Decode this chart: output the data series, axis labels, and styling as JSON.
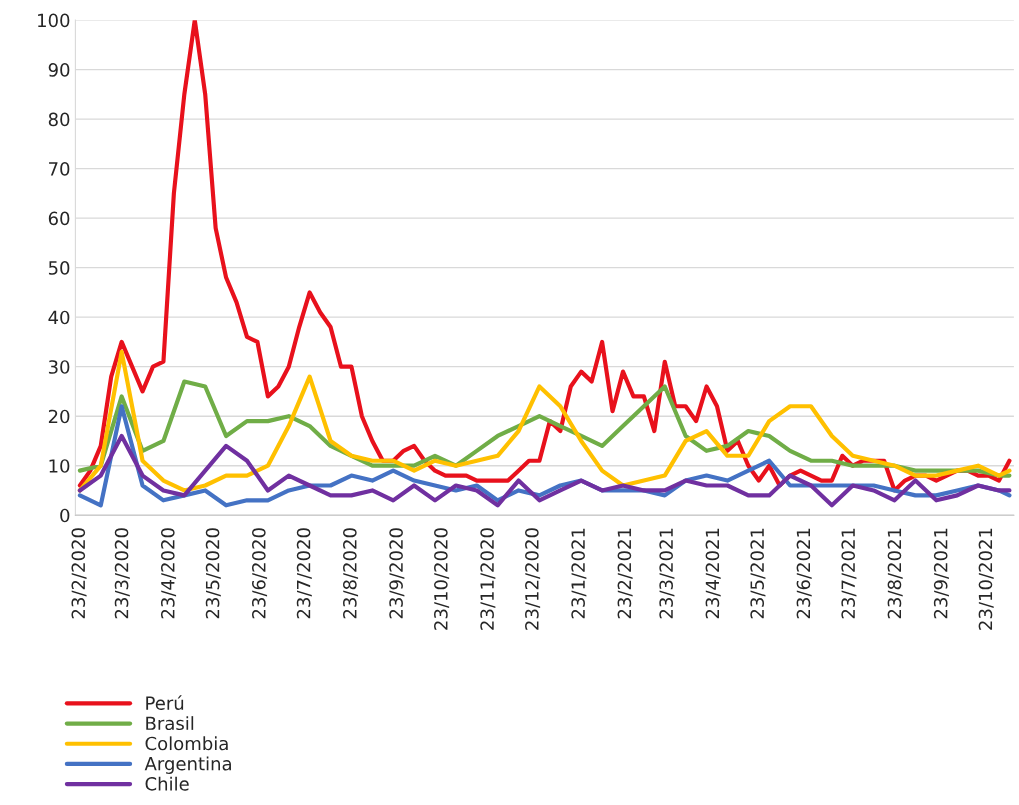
{
  "chart_data": {
    "type": "line",
    "xlim": [
      "2020-02-20",
      "2021-11-10"
    ],
    "xticks": [
      {
        "value": "2020-02-23",
        "label": "23/2/2020"
      },
      {
        "value": "2020-03-23",
        "label": "23/3/2020"
      },
      {
        "value": "2020-04-23",
        "label": "23/4/2020"
      },
      {
        "value": "2020-05-23",
        "label": "23/5/2020"
      },
      {
        "value": "2020-06-23",
        "label": "23/6/2020"
      },
      {
        "value": "2020-07-23",
        "label": "23/7/2020"
      },
      {
        "value": "2020-08-23",
        "label": "23/8/2020"
      },
      {
        "value": "2020-09-23",
        "label": "23/9/2020"
      },
      {
        "value": "2020-10-23",
        "label": "23/10/2020"
      },
      {
        "value": "2020-11-23",
        "label": "23/11/2020"
      },
      {
        "value": "2020-12-23",
        "label": "23/12/2020"
      },
      {
        "value": "2021-01-23",
        "label": "23/1/2021"
      },
      {
        "value": "2021-02-23",
        "label": "23/2/2021"
      },
      {
        "value": "2021-03-23",
        "label": "23/3/2021"
      },
      {
        "value": "2021-04-23",
        "label": "23/4/2021"
      },
      {
        "value": "2021-05-23",
        "label": "23/5/2021"
      },
      {
        "value": "2021-06-23",
        "label": "23/6/2021"
      },
      {
        "value": "2021-07-23",
        "label": "23/7/2021"
      },
      {
        "value": "2021-08-23",
        "label": "23/8/2021"
      },
      {
        "value": "2021-09-23",
        "label": "23/9/2021"
      },
      {
        "value": "2021-10-23",
        "label": "23/10/2021"
      }
    ],
    "ylim": [
      0,
      100
    ],
    "yticks": [
      0,
      10,
      20,
      30,
      40,
      50,
      60,
      70,
      80,
      90,
      100
    ],
    "grid": "y",
    "legend": "bottom",
    "marker": "none",
    "line_style": "solid",
    "series": [
      {
        "name": "Perú",
        "color": "#e8111c",
        "x": [
          "2020-02-23",
          "2020-03-01",
          "2020-03-08",
          "2020-03-15",
          "2020-03-22",
          "2020-03-29",
          "2020-04-05",
          "2020-04-12",
          "2020-04-19",
          "2020-04-26",
          "2020-05-03",
          "2020-05-10",
          "2020-05-17",
          "2020-05-24",
          "2020-05-31",
          "2020-06-07",
          "2020-06-14",
          "2020-06-21",
          "2020-06-28",
          "2020-07-05",
          "2020-07-12",
          "2020-07-19",
          "2020-07-26",
          "2020-08-02",
          "2020-08-09",
          "2020-08-16",
          "2020-08-23",
          "2020-08-30",
          "2020-09-06",
          "2020-09-13",
          "2020-09-20",
          "2020-09-27",
          "2020-10-04",
          "2020-10-11",
          "2020-10-18",
          "2020-10-25",
          "2020-11-01",
          "2020-11-08",
          "2020-11-15",
          "2020-11-22",
          "2020-11-29",
          "2020-12-06",
          "2020-12-13",
          "2020-12-20",
          "2020-12-27",
          "2021-01-03",
          "2021-01-10",
          "2021-01-17",
          "2021-01-24",
          "2021-01-31",
          "2021-02-07",
          "2021-02-14",
          "2021-02-21",
          "2021-02-28",
          "2021-03-07",
          "2021-03-14",
          "2021-03-21",
          "2021-03-28",
          "2021-04-04",
          "2021-04-11",
          "2021-04-18",
          "2021-04-25",
          "2021-05-02",
          "2021-05-09",
          "2021-05-16",
          "2021-05-23",
          "2021-05-30",
          "2021-06-06",
          "2021-06-13",
          "2021-06-20",
          "2021-06-27",
          "2021-07-04",
          "2021-07-11",
          "2021-07-18",
          "2021-07-25",
          "2021-08-01",
          "2021-08-08",
          "2021-08-15",
          "2021-08-22",
          "2021-08-29",
          "2021-09-05",
          "2021-09-12",
          "2021-09-19",
          "2021-09-26",
          "2021-10-03",
          "2021-10-10",
          "2021-10-17",
          "2021-10-24",
          "2021-10-31",
          "2021-11-07"
        ],
        "values": [
          6,
          9,
          14,
          28,
          35,
          30,
          25,
          30,
          31,
          65,
          85,
          100,
          85,
          58,
          48,
          43,
          36,
          35,
          24,
          26,
          30,
          38,
          45,
          41,
          38,
          30,
          30,
          20,
          15,
          11,
          11,
          13,
          14,
          11,
          9,
          8,
          8,
          8,
          7,
          7,
          7,
          7,
          9,
          11,
          11,
          19,
          17,
          26,
          29,
          27,
          35,
          21,
          29,
          24,
          24,
          17,
          31,
          22,
          22,
          19,
          26,
          22,
          13,
          15,
          10,
          7,
          10,
          6,
          8,
          9,
          8,
          7,
          7,
          12,
          10,
          11,
          11,
          11,
          5,
          7,
          8,
          8,
          7,
          8,
          9,
          9,
          8,
          8,
          7,
          11
        ]
      },
      {
        "name": "Brasil",
        "color": "#70ad47",
        "x": [
          "2020-02-23",
          "2020-03-08",
          "2020-03-22",
          "2020-04-05",
          "2020-04-19",
          "2020-05-03",
          "2020-05-17",
          "2020-05-31",
          "2020-06-14",
          "2020-06-28",
          "2020-07-12",
          "2020-07-26",
          "2020-08-09",
          "2020-08-23",
          "2020-09-06",
          "2020-09-20",
          "2020-10-04",
          "2020-10-18",
          "2020-11-01",
          "2020-11-15",
          "2020-11-29",
          "2020-12-13",
          "2020-12-27",
          "2021-01-10",
          "2021-01-24",
          "2021-02-07",
          "2021-02-21",
          "2021-03-07",
          "2021-03-21",
          "2021-04-04",
          "2021-04-18",
          "2021-05-02",
          "2021-05-16",
          "2021-05-30",
          "2021-06-13",
          "2021-06-27",
          "2021-07-11",
          "2021-07-25",
          "2021-08-08",
          "2021-08-22",
          "2021-09-05",
          "2021-09-19",
          "2021-10-03",
          "2021-10-17",
          "2021-10-31",
          "2021-11-07"
        ],
        "values": [
          9,
          10,
          24,
          13,
          15,
          27,
          26,
          16,
          19,
          19,
          20,
          18,
          14,
          12,
          10,
          10,
          10,
          12,
          10,
          13,
          16,
          18,
          20,
          18,
          16,
          14,
          18,
          22,
          26,
          16,
          13,
          14,
          17,
          16,
          13,
          11,
          11,
          10,
          10,
          10,
          9,
          9,
          9,
          9,
          8,
          8
        ]
      },
      {
        "name": "Colombia",
        "color": "#ffc000",
        "x": [
          "2020-02-23",
          "2020-03-08",
          "2020-03-22",
          "2020-04-05",
          "2020-04-19",
          "2020-05-03",
          "2020-05-17",
          "2020-05-31",
          "2020-06-14",
          "2020-06-28",
          "2020-07-12",
          "2020-07-26",
          "2020-08-09",
          "2020-08-23",
          "2020-09-06",
          "2020-09-20",
          "2020-10-04",
          "2020-10-18",
          "2020-11-01",
          "2020-11-15",
          "2020-11-29",
          "2020-12-13",
          "2020-12-27",
          "2021-01-10",
          "2021-01-24",
          "2021-02-07",
          "2021-02-21",
          "2021-03-07",
          "2021-03-21",
          "2021-04-04",
          "2021-04-18",
          "2021-05-02",
          "2021-05-16",
          "2021-05-30",
          "2021-06-13",
          "2021-06-27",
          "2021-07-11",
          "2021-07-25",
          "2021-08-08",
          "2021-08-22",
          "2021-09-05",
          "2021-09-19",
          "2021-10-03",
          "2021-10-17",
          "2021-10-31",
          "2021-11-07"
        ],
        "values": [
          5,
          10,
          33,
          11,
          7,
          5,
          6,
          8,
          8,
          10,
          18,
          28,
          15,
          12,
          11,
          11,
          9,
          11,
          10,
          11,
          12,
          17,
          26,
          22,
          15,
          9,
          6,
          7,
          8,
          15,
          17,
          12,
          12,
          19,
          22,
          22,
          16,
          12,
          11,
          10,
          8,
          8,
          9,
          10,
          8,
          9
        ]
      },
      {
        "name": "Argentina",
        "color": "#4472c4",
        "x": [
          "2020-02-23",
          "2020-03-08",
          "2020-03-22",
          "2020-04-05",
          "2020-04-19",
          "2020-05-03",
          "2020-05-17",
          "2020-05-31",
          "2020-06-14",
          "2020-06-28",
          "2020-07-12",
          "2020-07-26",
          "2020-08-09",
          "2020-08-23",
          "2020-09-06",
          "2020-09-20",
          "2020-10-04",
          "2020-10-18",
          "2020-11-01",
          "2020-11-15",
          "2020-11-29",
          "2020-12-13",
          "2020-12-27",
          "2021-01-10",
          "2021-01-24",
          "2021-02-07",
          "2021-02-21",
          "2021-03-07",
          "2021-03-21",
          "2021-04-04",
          "2021-04-18",
          "2021-05-02",
          "2021-05-16",
          "2021-05-30",
          "2021-06-13",
          "2021-06-27",
          "2021-07-11",
          "2021-07-25",
          "2021-08-08",
          "2021-08-22",
          "2021-09-05",
          "2021-09-19",
          "2021-10-03",
          "2021-10-17",
          "2021-10-31",
          "2021-11-07"
        ],
        "values": [
          4,
          2,
          22,
          6,
          3,
          4,
          5,
          2,
          3,
          3,
          5,
          6,
          6,
          8,
          7,
          9,
          7,
          6,
          5,
          6,
          3,
          5,
          4,
          6,
          7,
          5,
          5,
          5,
          4,
          7,
          8,
          7,
          9,
          11,
          6,
          6,
          6,
          6,
          6,
          5,
          4,
          4,
          5,
          6,
          5,
          4
        ]
      },
      {
        "name": "Chile",
        "color": "#7030a0",
        "x": [
          "2020-02-23",
          "2020-03-08",
          "2020-03-22",
          "2020-04-05",
          "2020-04-19",
          "2020-05-03",
          "2020-05-17",
          "2020-05-31",
          "2020-06-14",
          "2020-06-28",
          "2020-07-12",
          "2020-07-26",
          "2020-08-09",
          "2020-08-23",
          "2020-09-06",
          "2020-09-20",
          "2020-10-04",
          "2020-10-18",
          "2020-11-01",
          "2020-11-15",
          "2020-11-29",
          "2020-12-13",
          "2020-12-27",
          "2021-01-10",
          "2021-01-24",
          "2021-02-07",
          "2021-02-21",
          "2021-03-07",
          "2021-03-21",
          "2021-04-04",
          "2021-04-18",
          "2021-05-02",
          "2021-05-16",
          "2021-05-30",
          "2021-06-13",
          "2021-06-27",
          "2021-07-11",
          "2021-07-25",
          "2021-08-08",
          "2021-08-22",
          "2021-09-05",
          "2021-09-19",
          "2021-10-03",
          "2021-10-17",
          "2021-10-31",
          "2021-11-07"
        ],
        "values": [
          5,
          8,
          16,
          8,
          5,
          4,
          9,
          14,
          11,
          5,
          8,
          6,
          4,
          4,
          5,
          3,
          6,
          3,
          6,
          5,
          2,
          7,
          3,
          5,
          7,
          5,
          6,
          5,
          5,
          7,
          6,
          6,
          4,
          4,
          8,
          6,
          2,
          6,
          5,
          3,
          7,
          3,
          4,
          6,
          5,
          5
        ]
      }
    ]
  }
}
